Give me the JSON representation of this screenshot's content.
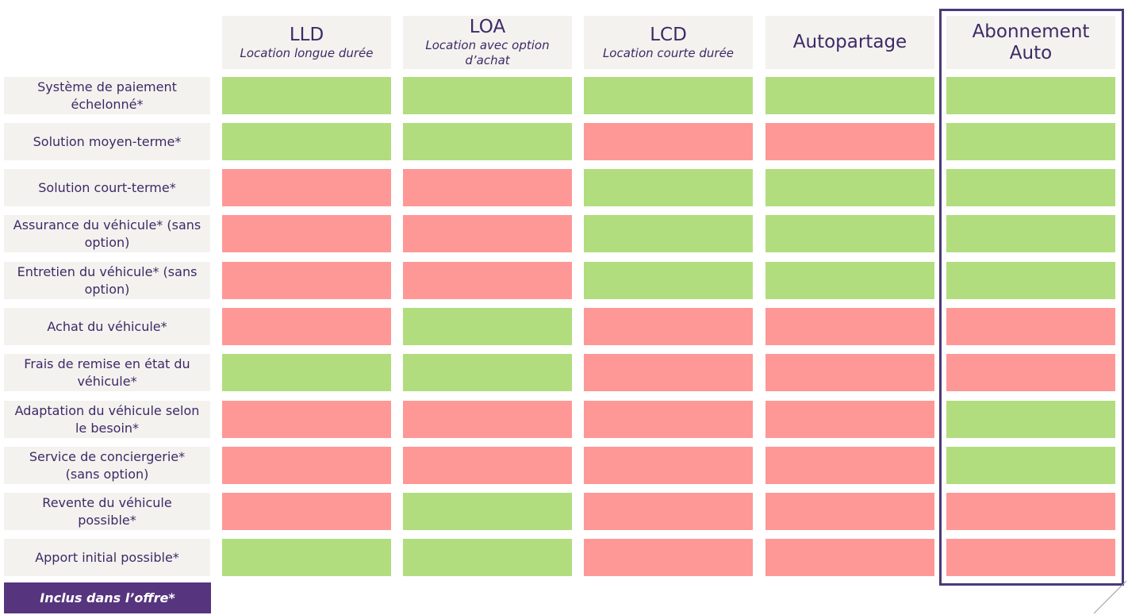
{
  "columns": [
    {
      "title": "LLD",
      "subtitle": "Location longue durée"
    },
    {
      "title": "LOA",
      "subtitle": "Location avec option d’achat"
    },
    {
      "title": "LCD",
      "subtitle": "Location courte durée"
    },
    {
      "title": "Autopartage",
      "subtitle": ""
    },
    {
      "title": "Abonnement Auto",
      "subtitle": ""
    }
  ],
  "rows": [
    {
      "label": "Système de paiement échelonné*",
      "included": [
        true,
        true,
        true,
        true,
        true
      ]
    },
    {
      "label": "Solution moyen-terme*",
      "included": [
        true,
        true,
        false,
        false,
        true
      ]
    },
    {
      "label": "Solution court-terme*",
      "included": [
        false,
        false,
        true,
        true,
        true
      ]
    },
    {
      "label": "Assurance du véhicule* (sans option)",
      "included": [
        false,
        false,
        true,
        true,
        true
      ]
    },
    {
      "label": "Entretien du véhicule* (sans option)",
      "included": [
        false,
        false,
        true,
        true,
        true
      ]
    },
    {
      "label": "Achat du véhicule*",
      "included": [
        false,
        true,
        false,
        false,
        false
      ]
    },
    {
      "label": "Frais de remise en état du véhicule*",
      "included": [
        true,
        true,
        false,
        false,
        false
      ]
    },
    {
      "label": "Adaptation du véhicule selon le besoin*",
      "included": [
        false,
        false,
        false,
        false,
        true
      ]
    },
    {
      "label": "Service de conciergerie* (sans option)",
      "included": [
        false,
        false,
        false,
        false,
        true
      ]
    },
    {
      "label": "Revente du véhicule possible*",
      "included": [
        false,
        true,
        false,
        false,
        false
      ]
    },
    {
      "label": "Apport initial possible*",
      "included": [
        true,
        true,
        false,
        false,
        false
      ]
    }
  ],
  "legend": {
    "label": "Inclus dans l’offre*"
  },
  "colors": {
    "included": "#b1dd7f",
    "not_included": "#fe9896",
    "accent": "#56357e",
    "text": "#3d2a66"
  },
  "highlighted_column": "Abonnement Auto"
}
